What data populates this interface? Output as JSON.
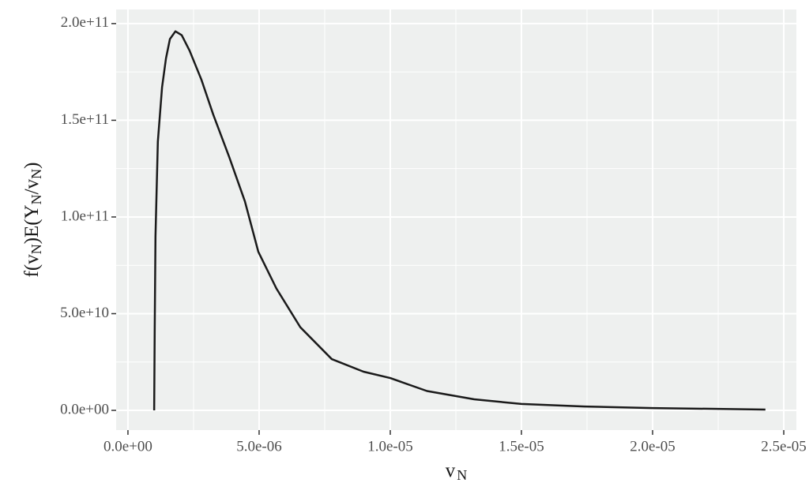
{
  "chart_data": {
    "type": "line",
    "x_label": [
      "v",
      "N"
    ],
    "y_label": [
      "f(",
      "v",
      "N",
      ")E(Y",
      "N",
      "/",
      "v",
      "N",
      ")"
    ],
    "x": [
      1e-06,
      1.02e-06,
      1.05e-06,
      1.14e-06,
      1.3e-06,
      1.45e-06,
      1.6e-06,
      1.81e-06,
      2.05e-06,
      2.35e-06,
      2.8e-06,
      3.25e-06,
      3.86e-06,
      4.46e-06,
      4.97e-06,
      5.66e-06,
      6.57e-06,
      7.77e-06,
      8.98e-06,
      1e-05,
      1.14e-05,
      1.32e-05,
      1.5e-05,
      1.74e-05,
      2e-05,
      2.43e-05
    ],
    "series": [
      {
        "color": "#1a1a1a",
        "values": [
          0,
          41000000000.0,
          90000000000.0,
          139000000000.0,
          167000000000.0,
          182000000000.0,
          192000000000.0,
          196000000000.0,
          194000000000.0,
          186000000000.0,
          171000000000.0,
          153000000000.0,
          131000000000.0,
          108000000000.0,
          82000000000.0,
          63000000000.0,
          43000000000.0,
          26500000000.0,
          20000000000.0,
          16700000000.0,
          10000000000.0,
          5700000000.0,
          3300000000.0,
          2000000000.0,
          1200000000.0,
          400000000.0
        ]
      }
    ],
    "xlim": [
      -4.5e-07,
      2.548e-05
    ],
    "ylim": [
      -10200000000.0,
      207300000000.0
    ],
    "xticks": [
      {
        "value": 0,
        "label": "0.0e+00"
      },
      {
        "value": 5e-06,
        "label": "5.0e-06"
      },
      {
        "value": 1e-05,
        "label": "1.0e-05"
      },
      {
        "value": 1.5e-05,
        "label": "1.5e-05"
      },
      {
        "value": 2e-05,
        "label": "2.0e-05"
      },
      {
        "value": 2.5e-05,
        "label": "2.5e-05"
      }
    ],
    "yticks": [
      {
        "value": 0,
        "label": "0.0e+00"
      },
      {
        "value": 50000000000.0,
        "label": "5.0e+10"
      },
      {
        "value": 100000000000.0,
        "label": "1.0e+11"
      },
      {
        "value": 150000000000.0,
        "label": "1.5e+11"
      },
      {
        "value": 200000000000.0,
        "label": "2.0e+11"
      }
    ],
    "grid": true
  }
}
